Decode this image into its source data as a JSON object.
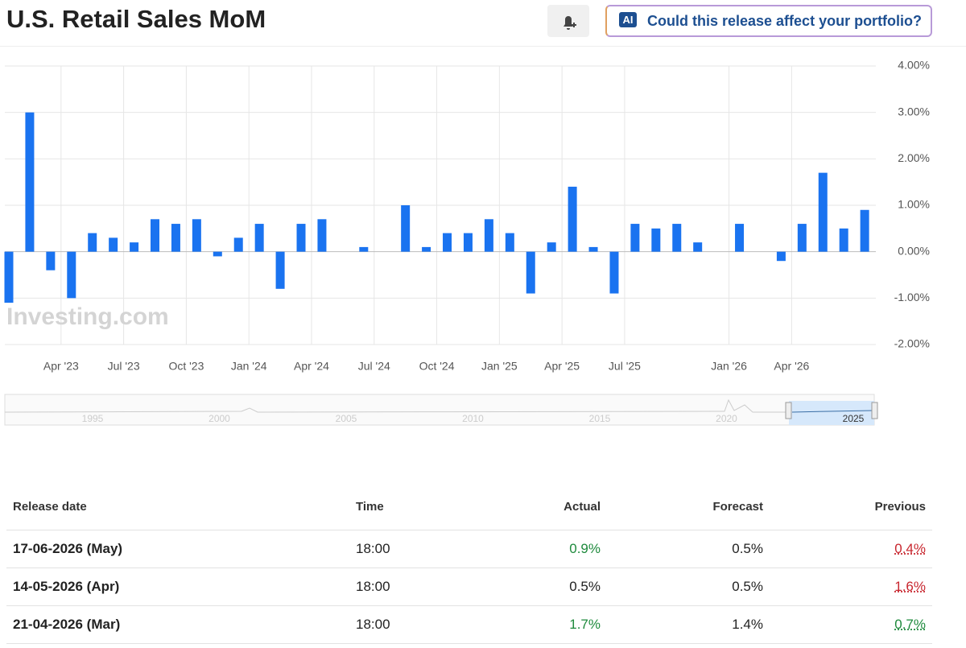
{
  "header": {
    "title": "U.S. Retail Sales MoM",
    "ai_badge": "AI",
    "ai_button": "Could this release affect your portfolio?"
  },
  "chart_data": {
    "type": "bar",
    "color": "#1a73f0",
    "watermark": "Investing.com",
    "categories": [
      null,
      null,
      null,
      "Apr '23",
      null,
      null,
      "Jul '23",
      null,
      null,
      "Oct '23",
      null,
      null,
      "Jan '24",
      null,
      null,
      "Apr '24",
      null,
      null,
      "Jul '24",
      null,
      null,
      "Oct '24",
      null,
      null,
      "Jan '25",
      null,
      null,
      "Apr '25",
      null,
      null,
      "Jul '25",
      null,
      null,
      null,
      null,
      "Jan '26",
      null,
      null,
      "Apr '26",
      null,
      null,
      null
    ],
    "values": [
      -1.1,
      3.0,
      -0.4,
      -1.0,
      0.4,
      0.3,
      0.2,
      0.7,
      0.6,
      0.7,
      -0.1,
      0.3,
      0.6,
      -0.8,
      0.6,
      0.7,
      null,
      0.1,
      null,
      1.0,
      0.1,
      0.4,
      0.4,
      0.7,
      0.4,
      -0.9,
      0.2,
      1.4,
      0.1,
      -0.9,
      0.6,
      0.5,
      0.6,
      0.2,
      null,
      0.6,
      null,
      -0.2,
      0.6,
      1.7,
      0.5,
      0.9
    ],
    "ylim": [
      -2,
      4
    ],
    "yticks": [
      {
        "value": 4,
        "label": "4.00%"
      },
      {
        "value": 3,
        "label": "3.00%"
      },
      {
        "value": 2,
        "label": "2.00%"
      },
      {
        "value": 1,
        "label": "1.00%"
      },
      {
        "value": 0,
        "label": "0.00%"
      },
      {
        "value": -1,
        "label": "-1.00%"
      },
      {
        "value": -2,
        "label": "-2.00%"
      }
    ],
    "grid": true,
    "navigator_labels": [
      "1995",
      "2000",
      "2005",
      "2010",
      "2015",
      "2020",
      "2025"
    ]
  },
  "table": {
    "columns": [
      "Release date",
      "Time",
      "Actual",
      "Forecast",
      "Previous"
    ],
    "rows": [
      {
        "date": "17-06-2026 (May)",
        "time": "18:00",
        "actual": "0.9%",
        "actual_color": "#1e8a3c",
        "forecast": "0.5%",
        "previous": "0.4%",
        "previous_color": "#c8262e"
      },
      {
        "date": "14-05-2026 (Apr)",
        "time": "18:00",
        "actual": "0.5%",
        "actual_color": "#222222",
        "forecast": "0.5%",
        "previous": "1.6%",
        "previous_color": "#c8262e"
      },
      {
        "date": "21-04-2026 (Mar)",
        "time": "18:00",
        "actual": "1.7%",
        "actual_color": "#1e8a3c",
        "forecast": "1.4%",
        "previous": "0.7%",
        "previous_color": "#1e8a3c"
      }
    ]
  }
}
